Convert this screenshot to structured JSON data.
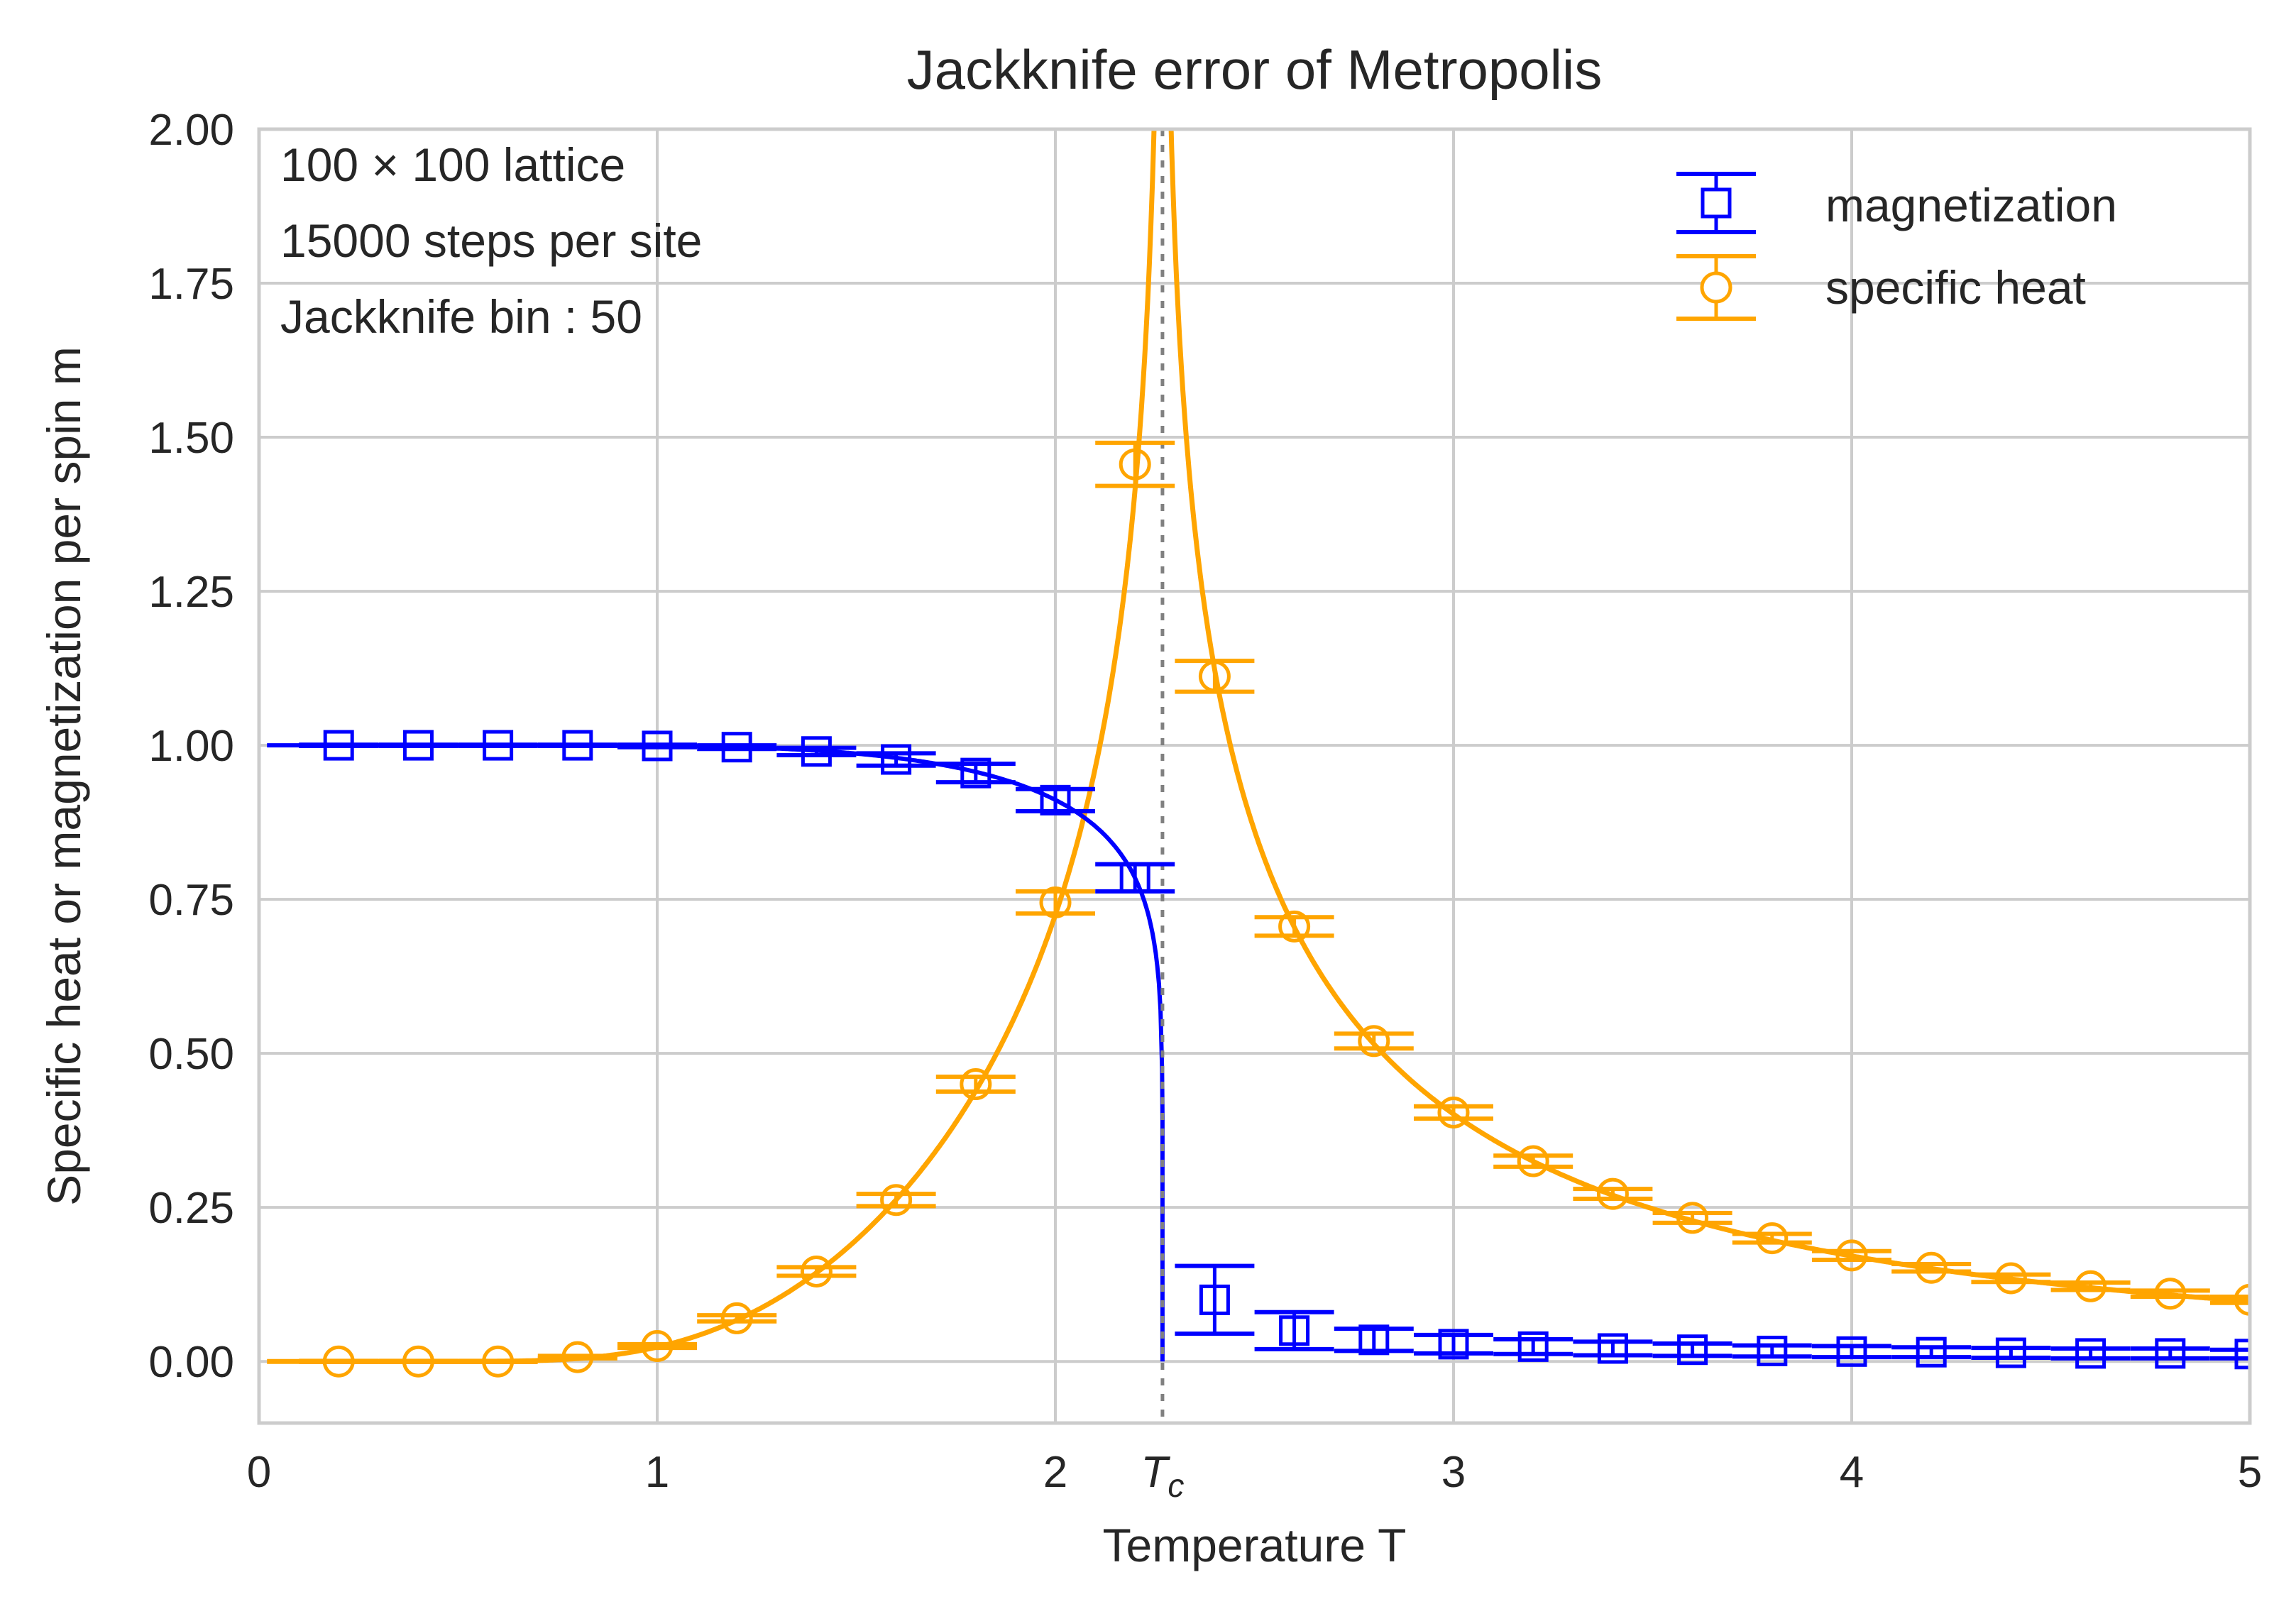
{
  "chart_data": {
    "type": "line",
    "title": "Jackknife error of Metropolis",
    "xlabel": "Temperature T",
    "ylabel": "Specific heat or magnetization per spin m",
    "xlim": [
      0,
      5
    ],
    "ylim": [
      -0.1,
      2.0
    ],
    "grid": true,
    "legend_position": "top-right",
    "xticks": [
      {
        "value": 0,
        "label": "0"
      },
      {
        "value": 1,
        "label": "1"
      },
      {
        "value": 2,
        "label": "2"
      },
      {
        "value": 2.269,
        "label": "T",
        "sub": "c"
      },
      {
        "value": 3,
        "label": "3"
      },
      {
        "value": 4,
        "label": "4"
      },
      {
        "value": 5,
        "label": "5"
      }
    ],
    "yticks": [
      {
        "value": 0.0,
        "label": "0.00"
      },
      {
        "value": 0.25,
        "label": "0.25"
      },
      {
        "value": 0.5,
        "label": "0.50"
      },
      {
        "value": 0.75,
        "label": "0.75"
      },
      {
        "value": 1.0,
        "label": "1.00"
      },
      {
        "value": 1.25,
        "label": "1.25"
      },
      {
        "value": 1.5,
        "label": "1.50"
      },
      {
        "value": 1.75,
        "label": "1.75"
      },
      {
        "value": 2.0,
        "label": "2.00"
      }
    ],
    "annotations": [
      "100 × 100 lattice",
      "15000 steps per site",
      "Jackknife bin : 50"
    ],
    "critical_temperature": 2.269,
    "series": [
      {
        "name": "magnetization",
        "color": "#0000ff",
        "marker": "square",
        "x": [
          0.2,
          0.4,
          0.6,
          0.8,
          1.0,
          1.2,
          1.4,
          1.6,
          1.8,
          2.0,
          2.2,
          2.4,
          2.6,
          2.8,
          3.0,
          3.2,
          3.4,
          3.6,
          3.8,
          4.0,
          4.2,
          4.4,
          4.6,
          4.8,
          5.0
        ],
        "y": [
          1.0,
          1.0,
          1.0,
          1.0,
          0.999,
          0.997,
          0.99,
          0.977,
          0.955,
          0.911,
          0.785,
          0.1,
          0.05,
          0.035,
          0.028,
          0.024,
          0.021,
          0.019,
          0.017,
          0.016,
          0.015,
          0.014,
          0.013,
          0.013,
          0.012
        ],
        "yerr": [
          0.001,
          0.001,
          0.001,
          0.001,
          0.002,
          0.003,
          0.006,
          0.01,
          0.015,
          0.018,
          0.022,
          0.055,
          0.03,
          0.018,
          0.015,
          0.012,
          0.011,
          0.01,
          0.009,
          0.009,
          0.008,
          0.008,
          0.008,
          0.008,
          0.007
        ],
        "theory_curve": "Onsager exact magnetization (1 - sinh(2/T)^-4)^(1/8)"
      },
      {
        "name": "specific heat",
        "color": "#ffa500",
        "marker": "circle",
        "x": [
          0.2,
          0.4,
          0.6,
          0.8,
          1.0,
          1.2,
          1.4,
          1.6,
          1.8,
          2.0,
          2.2,
          2.4,
          2.6,
          2.8,
          3.0,
          3.2,
          3.4,
          3.6,
          3.8,
          4.0,
          4.2,
          4.4,
          4.6,
          4.8,
          5.0
        ],
        "y": [
          0.0,
          0.0,
          0.0,
          0.007,
          0.025,
          0.07,
          0.146,
          0.262,
          0.45,
          0.745,
          1.456,
          1.112,
          0.706,
          0.52,
          0.404,
          0.325,
          0.272,
          0.233,
          0.2,
          0.172,
          0.152,
          0.135,
          0.122,
          0.11,
          0.1
        ],
        "yerr": [
          0.001,
          0.001,
          0.001,
          0.002,
          0.003,
          0.005,
          0.007,
          0.01,
          0.012,
          0.018,
          0.035,
          0.025,
          0.015,
          0.012,
          0.01,
          0.009,
          0.008,
          0.008,
          0.007,
          0.007,
          0.006,
          0.006,
          0.006,
          0.005,
          0.005
        ],
        "theory_curve": "Onsager exact specific heat"
      }
    ]
  }
}
